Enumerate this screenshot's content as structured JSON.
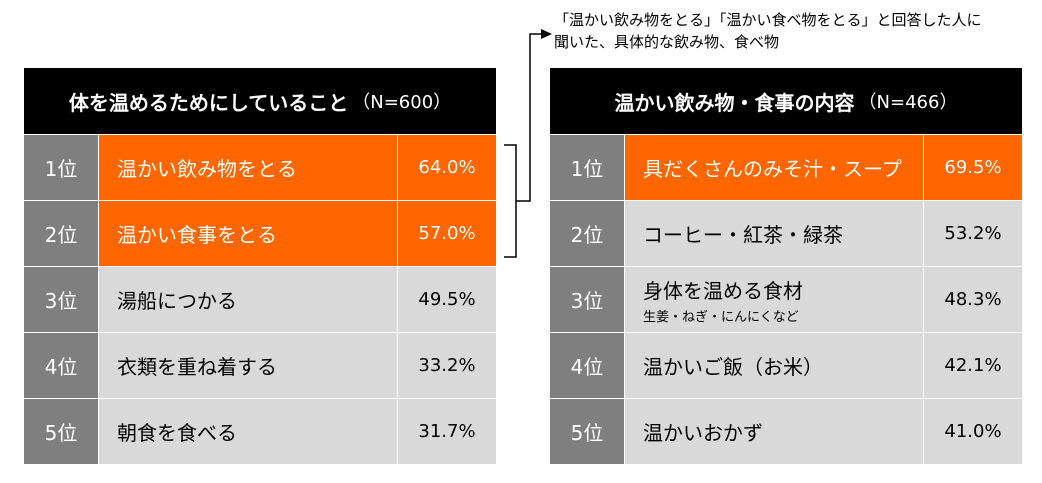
{
  "note": {
    "line1": "「温かい飲み物をとる」「温かい食べ物をとる」と回答した人に",
    "line2": "聞いた、具体的な飲み物、食べ物"
  },
  "chart_data": [
    {
      "type": "table",
      "title": "体を温めるためにしていること",
      "n": "（N=600）",
      "rows": [
        {
          "rank": "1位",
          "label": "温かい飲み物をとる",
          "value": "64.0%",
          "highlight": true
        },
        {
          "rank": "2位",
          "label": "温かい食事をとる",
          "value": "57.0%",
          "highlight": true
        },
        {
          "rank": "3位",
          "label": "湯船につかる",
          "value": "49.5%",
          "highlight": false
        },
        {
          "rank": "4位",
          "label": "衣類を重ね着する",
          "value": "33.2%",
          "highlight": false
        },
        {
          "rank": "5位",
          "label": "朝食を食べる",
          "value": "31.7%",
          "highlight": false
        }
      ]
    },
    {
      "type": "table",
      "title": "温かい飲み物・食事の内容",
      "n": "（N=466）",
      "rows": [
        {
          "rank": "1位",
          "label": "具だくさんのみそ汁・スープ",
          "value": "69.5%",
          "highlight": true
        },
        {
          "rank": "2位",
          "label": "コーヒー・紅茶・緑茶",
          "value": "53.2%",
          "highlight": false
        },
        {
          "rank": "3位",
          "label": "身体を温める食材",
          "sub": "生姜・ねぎ・にんにくなど",
          "value": "48.3%",
          "highlight": false
        },
        {
          "rank": "4位",
          "label": "温かいご飯（お米）",
          "value": "42.1%",
          "highlight": false
        },
        {
          "rank": "5位",
          "label": "温かいおかず",
          "value": "41.0%",
          "highlight": false
        }
      ]
    }
  ],
  "colors": {
    "header": "#000000",
    "rank": "#7f7f7f",
    "cell": "#d9d9d9",
    "highlight": "#ff6600"
  }
}
